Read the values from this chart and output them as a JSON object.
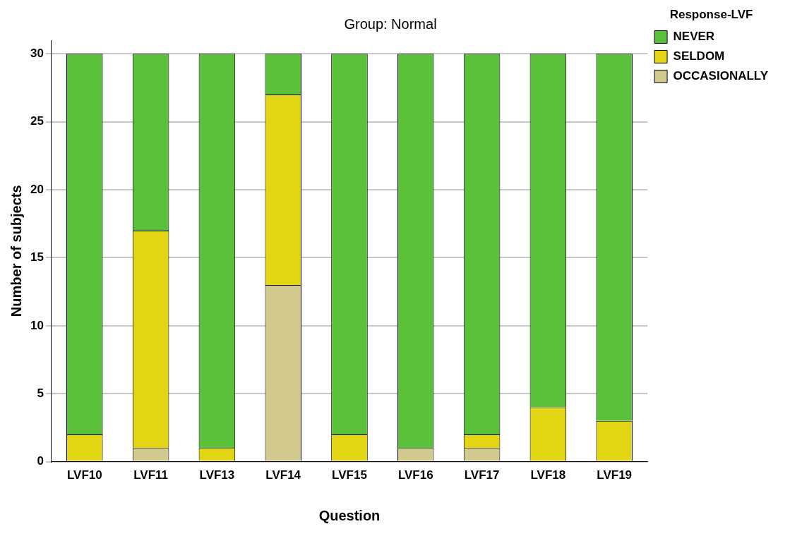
{
  "chart_data": {
    "type": "bar",
    "title": "Group: Normal",
    "xlabel": "Question",
    "ylabel": "Number of subjects",
    "legend_title": "Response-LVF",
    "categories": [
      "LVF10",
      "LVF11",
      "LVF13",
      "LVF14",
      "LVF15",
      "LVF16",
      "LVF17",
      "LVF18",
      "LVF19"
    ],
    "series": [
      {
        "name": "OCCASIONALLY",
        "color": "#d2c98f",
        "values": [
          0,
          1,
          0,
          13,
          0,
          1,
          1,
          0,
          0
        ]
      },
      {
        "name": "SELDOM",
        "color": "#e2d514",
        "values": [
          2,
          16,
          1,
          14,
          2,
          0,
          1,
          4,
          3
        ]
      },
      {
        "name": "NEVER",
        "color": "#5cc13a",
        "values": [
          28,
          13,
          29,
          3,
          28,
          29,
          28,
          26,
          27
        ]
      }
    ],
    "stacked": true,
    "ylim": [
      0,
      31
    ],
    "yticks": [
      0,
      5,
      10,
      15,
      20,
      25,
      30
    ],
    "grid": "y",
    "legend": "top right"
  }
}
